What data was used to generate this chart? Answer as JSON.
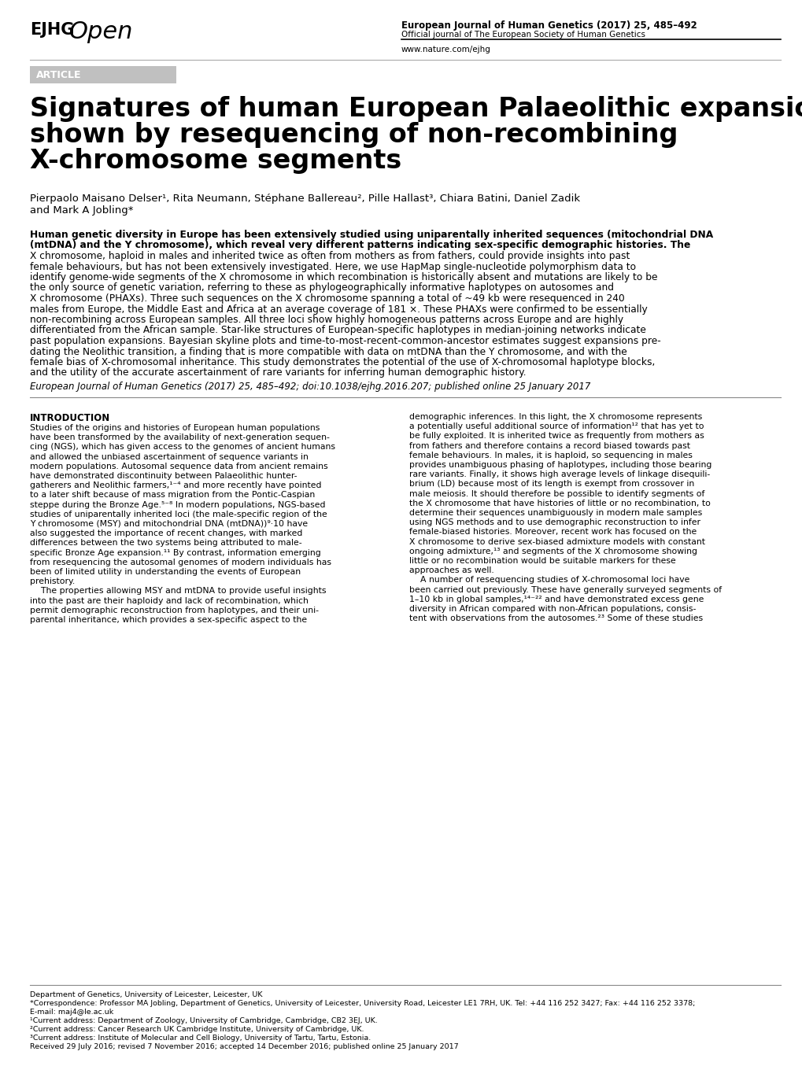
{
  "page_bg": "#ffffff",
  "logo_ejhg": "EJHG",
  "logo_open": "Open",
  "journal_line1": "European Journal of Human Genetics (2017) 25, 485–492",
  "journal_line2": "Official journal of The European Society of Human Genetics",
  "journal_line3": "www.nature.com/ejhg",
  "article_label": "ARTICLE",
  "article_label_bg": "#c0c0c0",
  "title_line1": "Signatures of human European Palaeolithic expansion",
  "title_line2": "shown by resequencing of non-recombining",
  "title_line3": "X-chromosome segments",
  "authors": "Pierpaolo Maisano Delser¹, Rita Neumann, Stéphane Ballereau², Pille Hallast³, Chiara Batini, Daniel Zadik",
  "authors2": "and Mark A Jobling*",
  "abstract": "Human genetic diversity in Europe has been extensively studied using uniparentally inherited sequences (mitochondrial DNA\n(mtDNA) and the Y chromosome), which reveal very different patterns indicating sex-specific demographic histories. The\nX chromosome, haploid in males and inherited twice as often from mothers as from fathers, could provide insights into past\nfemale behaviours, but has not been extensively investigated. Here, we use HapMap single-nucleotide polymorphism data to\nidentify genome-wide segments of the X chromosome in which recombination is historically absent and mutations are likely to be\nthe only source of genetic variation, referring to these as phylogeographically informative haplotypes on autosomes and\nX chromosome (PHAXs). Three such sequences on the X chromosome spanning a total of ~49 kb were resequenced in 240\nmales from Europe, the Middle East and Africa at an average coverage of 181 ×. These PHAXs were confirmed to be essentially\nnon-recombining across European samples. All three loci show highly homogeneous patterns across Europe and are highly\ndifferentiated from the African sample. Star-like structures of European-specific haplotypes in median-joining networks indicate\npast population expansions. Bayesian skyline plots and time-to-most-recent-common-ancestor estimates suggest expansions pre-\ndating the Neolithic transition, a finding that is more compatible with data on mtDNA than the Y chromosome, and with the\nfemale bias of X-chromosomal inheritance. This study demonstrates the potential of the use of X-chromosomal haplotype blocks,\nand the utility of the accurate ascertainment of rare variants for inferring human demographic history.",
  "citation": "European Journal of Human Genetics (2017) 25, 485–492; doi:10.1038/ejhg.2016.207; published online 25 January 2017",
  "section_intro": "INTRODUCTION",
  "intro_col1": "Studies of the origins and histories of European human populations\nhave been transformed by the availability of next-generation sequen-\ncing (NGS), which has given access to the genomes of ancient humans\nand allowed the unbiased ascertainment of sequence variants in\nmodern populations. Autosomal sequence data from ancient remains\nhave demonstrated discontinuity between Palaeolithic hunter-\ngatherers and Neolithic farmers,¹⁻⁴ and more recently have pointed\nto a later shift because of mass migration from the Pontic-Caspian\nsteppe during the Bronze Age.⁵⁻⁸ In modern populations, NGS-based\nstudies of uniparentally inherited loci (the male-specific region of the\nY chromosome (MSY) and mitochondrial DNA (mtDNA))⁹·10 have\nalso suggested the importance of recent changes, with marked\ndifferences between the two systems being attributed to male-\nspecific Bronze Age expansion.¹¹ By contrast, information emerging\nfrom resequencing the autosomal genomes of modern individuals has\nbeen of limited utility in understanding the events of European\nprehistory.\n    The properties allowing MSY and mtDNA to provide useful insights\ninto the past are their haploidy and lack of recombination, which\npermit demographic reconstruction from haplotypes, and their uni-\nparental inheritance, which provides a sex-specific aspect to the",
  "intro_col2": "demographic inferences. In this light, the X chromosome represents\na potentially useful additional source of information¹² that has yet to\nbe fully exploited. It is inherited twice as frequently from mothers as\nfrom fathers and therefore contains a record biased towards past\nfemale behaviours. In males, it is haploid, so sequencing in males\nprovides unambiguous phasing of haplotypes, including those bearing\nrare variants. Finally, it shows high average levels of linkage disequili-\nbrium (LD) because most of its length is exempt from crossover in\nmale meiosis. It should therefore be possible to identify segments of\nthe X chromosome that have histories of little or no recombination, to\ndetermine their sequences unambiguously in modern male samples\nusing NGS methods and to use demographic reconstruction to infer\nfemale-biased histories. Moreover, recent work has focused on the\nX chromosome to derive sex-biased admixture models with constant\nongoing admixture,¹³ and segments of the X chromosome showing\nlittle or no recombination would be suitable markers for these\napproaches as well.\n    A number of resequencing studies of X-chromosomal loci have\nbeen carried out previously. These have generally surveyed segments of\n1–10 kb in global samples,¹⁴⁻²² and have demonstrated excess gene\ndiversity in African compared with non-African populations, consis-\ntent with observations from the autosomes.²³ Some of these studies",
  "footer_dept": "Department of Genetics, University of Leicester, Leicester, UK",
  "footer_corr": "*Correspondence: Professor MA Jobling, Department of Genetics, University of Leicester, University Road, Leicester LE1 7RH, UK. Tel: +44 116 252 3427; Fax: +44 116 252 3378;",
  "footer_email": "E-mail: maj4@le.ac.uk",
  "footer_1": "¹Current address: Department of Zoology, University of Cambridge, Cambridge, CB2 3EJ, UK.",
  "footer_2": "²Current address: Cancer Research UK Cambridge Institute, University of Cambridge, UK.",
  "footer_3": "³Current address: Institute of Molecular and Cell Biology, University of Tartu, Tartu, Estonia.",
  "footer_received": "Received 29 July 2016; revised 7 November 2016; accepted 14 December 2016; published online 25 January 2017"
}
